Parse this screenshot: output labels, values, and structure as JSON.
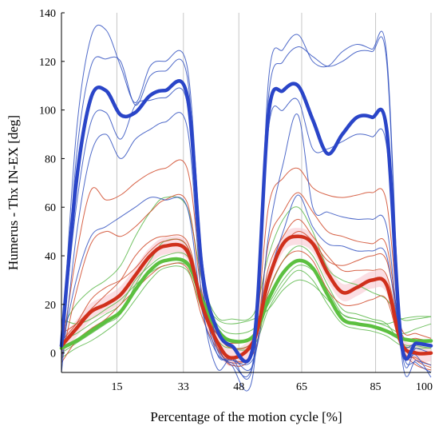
{
  "chart_data": {
    "type": "line",
    "title": "",
    "xlabel": "Percentage of the motion cycle [%]",
    "ylabel": "Humerus - Thx IN-EX [deg]",
    "xlim": [
      0,
      100
    ],
    "ylim": [
      -8,
      140
    ],
    "x_ticks": [
      15,
      33,
      48,
      65,
      85,
      100
    ],
    "y_ticks": [
      0,
      20,
      40,
      60,
      80,
      100,
      120,
      140
    ],
    "grid": "vertical",
    "legend": "none",
    "series": [
      {
        "group": "blue",
        "mean": true,
        "x": [
          0,
          4,
          8,
          12,
          16,
          20,
          24,
          28,
          34,
          38,
          42,
          46,
          52,
          56,
          60,
          64,
          68,
          72,
          76,
          80,
          84,
          88,
          92,
          96,
          100
        ],
        "y": [
          3,
          70,
          105,
          108,
          98,
          99,
          106,
          108,
          106,
          35,
          10,
          3,
          4,
          98,
          108,
          110,
          96,
          82,
          90,
          97,
          97,
          92,
          4,
          4,
          3
        ]
      },
      {
        "group": "blue",
        "x": [
          0,
          4,
          8,
          12,
          16,
          20,
          24,
          28,
          34,
          38,
          42,
          46,
          52,
          56,
          60,
          64,
          68,
          72,
          76,
          80,
          84,
          88,
          92,
          96,
          100
        ],
        "y": [
          0,
          90,
          130,
          133,
          118,
          103,
          118,
          120,
          118,
          40,
          5,
          -5,
          -7,
          112,
          125,
          131,
          120,
          118,
          124,
          127,
          125,
          123,
          3,
          2,
          0
        ]
      },
      {
        "group": "blue",
        "x": [
          0,
          4,
          8,
          12,
          16,
          20,
          24,
          28,
          34,
          38,
          42,
          46,
          52,
          56,
          60,
          64,
          68,
          72,
          76,
          80,
          84,
          88,
          92,
          96,
          100
        ],
        "y": [
          -5,
          80,
          118,
          121,
          120,
          102,
          114,
          116,
          114,
          30,
          0,
          -2,
          -3,
          105,
          120,
          126,
          122,
          118,
          120,
          124,
          124,
          120,
          0,
          -3,
          -5
        ]
      },
      {
        "group": "blue",
        "x": [
          0,
          4,
          8,
          12,
          16,
          20,
          24,
          28,
          34,
          38,
          42,
          46,
          52,
          56,
          60,
          64,
          68,
          72,
          76,
          80,
          84,
          88,
          92,
          96,
          100
        ],
        "y": [
          2,
          60,
          95,
          99,
          88,
          102,
          104,
          105,
          103,
          30,
          2,
          -4,
          -2,
          92,
          100,
          104,
          84,
          84,
          87,
          90,
          89,
          85,
          4,
          -4,
          -8
        ]
      },
      {
        "group": "blue",
        "x": [
          0,
          4,
          8,
          12,
          16,
          20,
          24,
          28,
          34,
          38,
          42,
          46,
          52,
          56,
          60,
          64,
          68,
          72,
          76,
          80,
          84,
          88,
          92,
          96,
          100
        ],
        "y": [
          -8,
          48,
          82,
          90,
          80,
          88,
          92,
          95,
          93,
          22,
          -6,
          -2,
          -4,
          48,
          78,
          98,
          60,
          58,
          56,
          55,
          55,
          52,
          2,
          -1,
          -10
        ]
      },
      {
        "group": "blue",
        "x": [
          0,
          4,
          8,
          12,
          16,
          20,
          24,
          28,
          34,
          38,
          42,
          46,
          52,
          56,
          60,
          64,
          68,
          72,
          76,
          80,
          84,
          88,
          92,
          96,
          100
        ],
        "y": [
          1,
          30,
          48,
          52,
          56,
          60,
          64,
          63,
          60,
          18,
          0,
          -3,
          -2,
          30,
          50,
          65,
          52,
          45,
          44,
          42,
          42,
          40,
          5,
          4,
          3
        ]
      },
      {
        "group": "red",
        "mean": true,
        "x": [
          0,
          4,
          8,
          12,
          16,
          20,
          24,
          28,
          34,
          38,
          42,
          46,
          52,
          56,
          60,
          64,
          68,
          72,
          76,
          80,
          84,
          88,
          92,
          96,
          100
        ],
        "y": [
          3,
          10,
          17,
          20,
          24,
          32,
          40,
          44,
          42,
          20,
          5,
          -2,
          5,
          30,
          45,
          48,
          45,
          33,
          25,
          27,
          30,
          28,
          4,
          0,
          0
        ]
      },
      {
        "group": "red",
        "x": [
          0,
          4,
          8,
          12,
          16,
          20,
          24,
          28,
          34,
          38,
          42,
          46,
          52,
          56,
          60,
          64,
          68,
          72,
          76,
          80,
          84,
          88,
          92,
          96,
          100
        ],
        "y": [
          0,
          40,
          67,
          63,
          65,
          70,
          74,
          76,
          76,
          30,
          5,
          -5,
          3,
          60,
          72,
          76,
          68,
          65,
          64,
          65,
          66,
          62,
          5,
          -2,
          -5
        ]
      },
      {
        "group": "red",
        "x": [
          0,
          4,
          8,
          12,
          16,
          20,
          24,
          28,
          34,
          38,
          42,
          46,
          52,
          56,
          60,
          64,
          68,
          72,
          76,
          80,
          84,
          88,
          92,
          96,
          100
        ],
        "y": [
          -3,
          25,
          45,
          50,
          48,
          52,
          58,
          63,
          62,
          25,
          3,
          -3,
          2,
          45,
          58,
          66,
          58,
          50,
          48,
          46,
          45,
          44,
          6,
          -3,
          -6
        ]
      },
      {
        "group": "red",
        "x": [
          0,
          4,
          8,
          12,
          16,
          20,
          24,
          28,
          34,
          38,
          42,
          46,
          52,
          56,
          60,
          64,
          68,
          72,
          76,
          80,
          84,
          88,
          92,
          96,
          100
        ],
        "y": [
          5,
          12,
          22,
          27,
          30,
          35,
          42,
          46,
          44,
          18,
          8,
          2,
          6,
          35,
          48,
          55,
          48,
          40,
          34,
          34,
          34,
          32,
          8,
          6,
          5
        ]
      },
      {
        "group": "red",
        "x": [
          0,
          4,
          8,
          12,
          16,
          20,
          24,
          28,
          34,
          38,
          42,
          46,
          52,
          56,
          60,
          64,
          68,
          72,
          76,
          80,
          84,
          88,
          92,
          96,
          100
        ],
        "y": [
          -4,
          5,
          10,
          14,
          20,
          26,
          32,
          36,
          35,
          15,
          2,
          -4,
          0,
          25,
          38,
          42,
          38,
          26,
          20,
          20,
          22,
          22,
          2,
          -5,
          -7
        ]
      },
      {
        "group": "red",
        "x": [
          0,
          4,
          8,
          12,
          16,
          20,
          24,
          28,
          34,
          38,
          42,
          46,
          52,
          56,
          60,
          64,
          68,
          72,
          76,
          80,
          84,
          88,
          92,
          96,
          100
        ],
        "y": [
          8,
          12,
          18,
          24,
          30,
          40,
          46,
          48,
          46,
          22,
          8,
          4,
          8,
          32,
          44,
          50,
          46,
          38,
          36,
          38,
          40,
          38,
          10,
          8,
          6
        ]
      },
      {
        "group": "green",
        "mean": true,
        "x": [
          0,
          4,
          8,
          12,
          16,
          20,
          24,
          28,
          34,
          38,
          42,
          46,
          52,
          56,
          60,
          64,
          68,
          72,
          76,
          80,
          84,
          88,
          92,
          96,
          100
        ],
        "y": [
          2,
          5,
          9,
          13,
          17,
          26,
          34,
          38,
          37,
          22,
          10,
          5,
          7,
          22,
          33,
          38,
          35,
          24,
          14,
          12,
          11,
          9,
          6,
          5,
          5
        ]
      },
      {
        "group": "green",
        "x": [
          0,
          4,
          8,
          12,
          16,
          20,
          24,
          28,
          34,
          38,
          42,
          46,
          52,
          56,
          60,
          64,
          68,
          72,
          76,
          80,
          84,
          88,
          92,
          96,
          100
        ],
        "y": [
          10,
          20,
          26,
          30,
          36,
          48,
          58,
          64,
          60,
          30,
          15,
          14,
          16,
          40,
          55,
          60,
          50,
          35,
          30,
          28,
          25,
          22,
          14,
          14,
          15
        ]
      },
      {
        "group": "green",
        "x": [
          0,
          4,
          8,
          12,
          16,
          20,
          24,
          28,
          34,
          38,
          42,
          46,
          52,
          56,
          60,
          64,
          68,
          72,
          76,
          80,
          84,
          88,
          92,
          96,
          100
        ],
        "y": [
          0,
          4,
          8,
          12,
          16,
          28,
          38,
          46,
          44,
          22,
          6,
          2,
          5,
          25,
          38,
          44,
          40,
          28,
          18,
          16,
          14,
          12,
          4,
          3,
          2
        ]
      },
      {
        "group": "green",
        "x": [
          0,
          4,
          8,
          12,
          16,
          20,
          24,
          28,
          34,
          38,
          42,
          46,
          52,
          56,
          60,
          64,
          68,
          72,
          76,
          80,
          84,
          88,
          92,
          96,
          100
        ],
        "y": [
          -2,
          2,
          5,
          9,
          14,
          22,
          30,
          35,
          34,
          18,
          8,
          2,
          3,
          18,
          28,
          34,
          30,
          20,
          12,
          10,
          9,
          7,
          3,
          2,
          2
        ]
      },
      {
        "group": "green",
        "x": [
          0,
          4,
          8,
          12,
          16,
          20,
          24,
          28,
          34,
          38,
          42,
          46,
          52,
          56,
          60,
          64,
          68,
          72,
          76,
          80,
          84,
          88,
          92,
          96,
          100
        ],
        "y": [
          5,
          8,
          12,
          16,
          20,
          30,
          36,
          40,
          40,
          24,
          12,
          8,
          10,
          20,
          30,
          36,
          34,
          26,
          16,
          14,
          13,
          11,
          8,
          10,
          12
        ]
      },
      {
        "group": "green",
        "x": [
          0,
          4,
          8,
          12,
          16,
          20,
          24,
          28,
          34,
          38,
          42,
          46,
          52,
          56,
          60,
          64,
          68,
          72,
          76,
          80,
          84,
          88,
          92,
          96,
          100
        ],
        "y": [
          14,
          12,
          14,
          18,
          22,
          28,
          33,
          36,
          36,
          22,
          14,
          12,
          14,
          18,
          26,
          30,
          28,
          22,
          16,
          14,
          13,
          12,
          14,
          15,
          15
        ]
      }
    ],
    "colors": {
      "blue": "#3050c0",
      "blue_mean": "#2a45c8",
      "red": "#d04828",
      "red_mean": "#d0301c",
      "green": "#5cb84a",
      "green_mean": "#5cc040",
      "band": "#f8c8d0",
      "grid": "#c8c8c8",
      "axis": "#000000"
    }
  }
}
